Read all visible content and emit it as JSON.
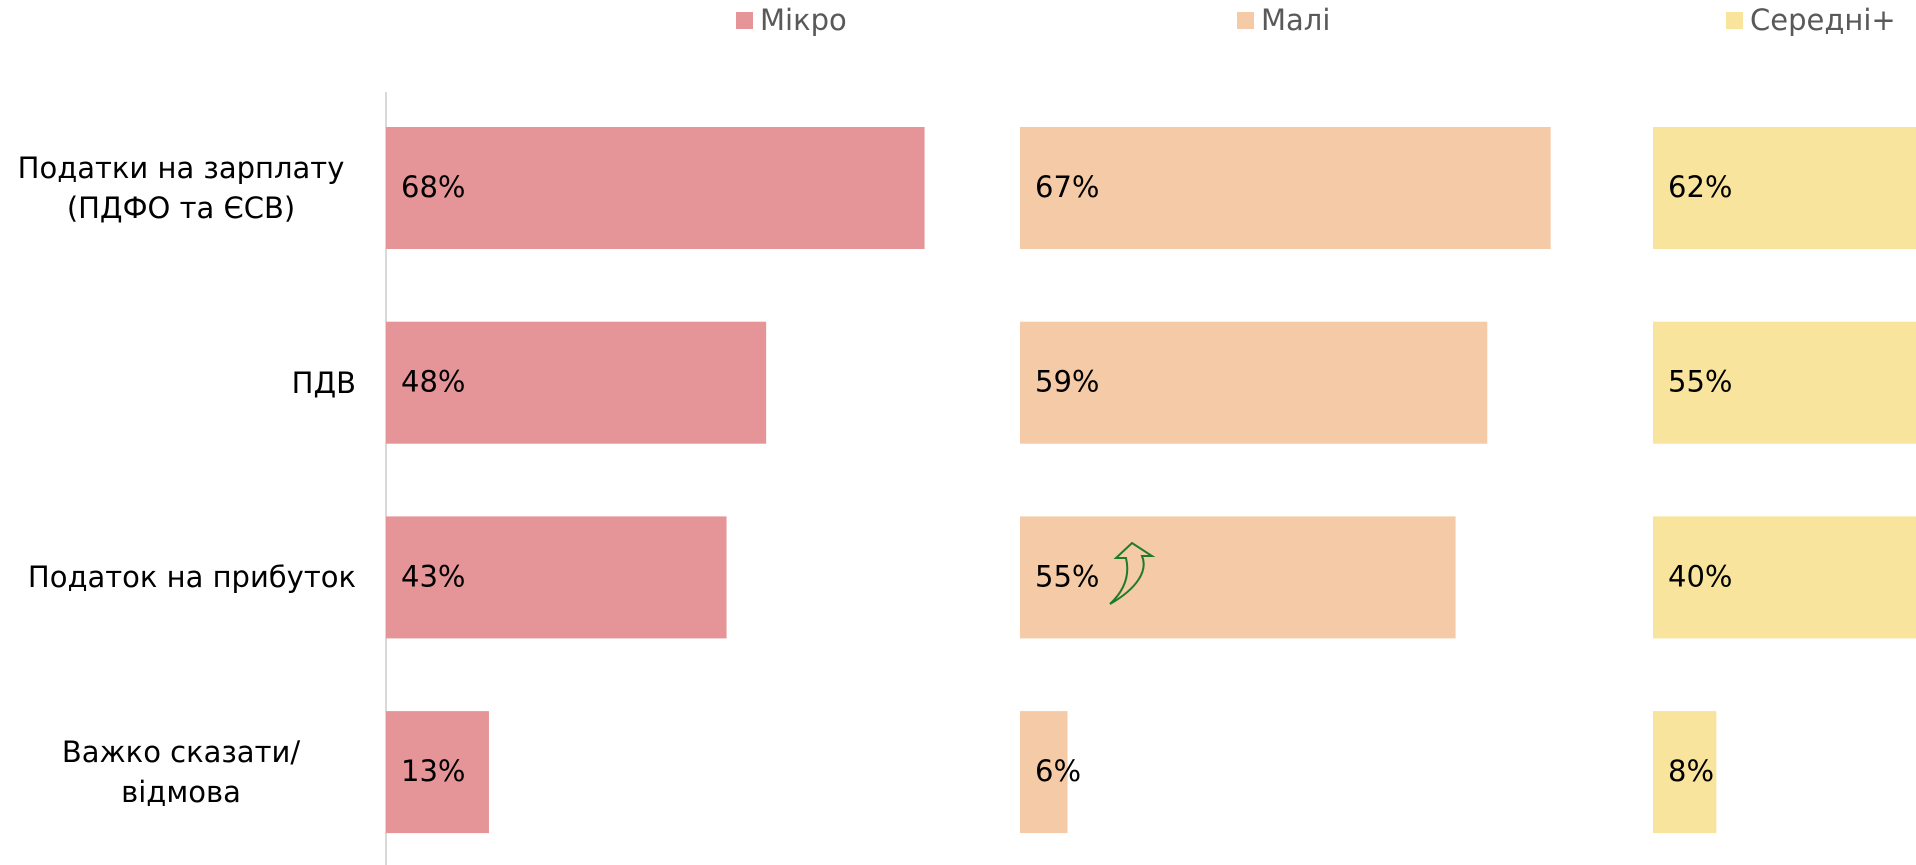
{
  "chart_data": {
    "type": "bar",
    "categories": [
      "Податки на зарплату (ПДФО та ЄСВ)",
      "ПДВ",
      "Податок на прибуток",
      "Важко сказати/відмова"
    ],
    "series": [
      {
        "name": "Мікро",
        "color": "#e59597",
        "values": [
          68,
          48,
          43,
          13
        ],
        "value_labels": [
          "68%",
          "48%",
          "43%",
          "13%"
        ]
      },
      {
        "name": "Малі",
        "color": "#f5caa6",
        "values": [
          67,
          59,
          55,
          6
        ],
        "value_labels": [
          "67%",
          "59%",
          "55%",
          "6%"
        ]
      },
      {
        "name": "Середні+",
        "color": "#f8e49c",
        "values": [
          62,
          55,
          40,
          8
        ],
        "value_labels": [
          "62%",
          "55%",
          "40%",
          "8%"
        ]
      }
    ]
  }
}
